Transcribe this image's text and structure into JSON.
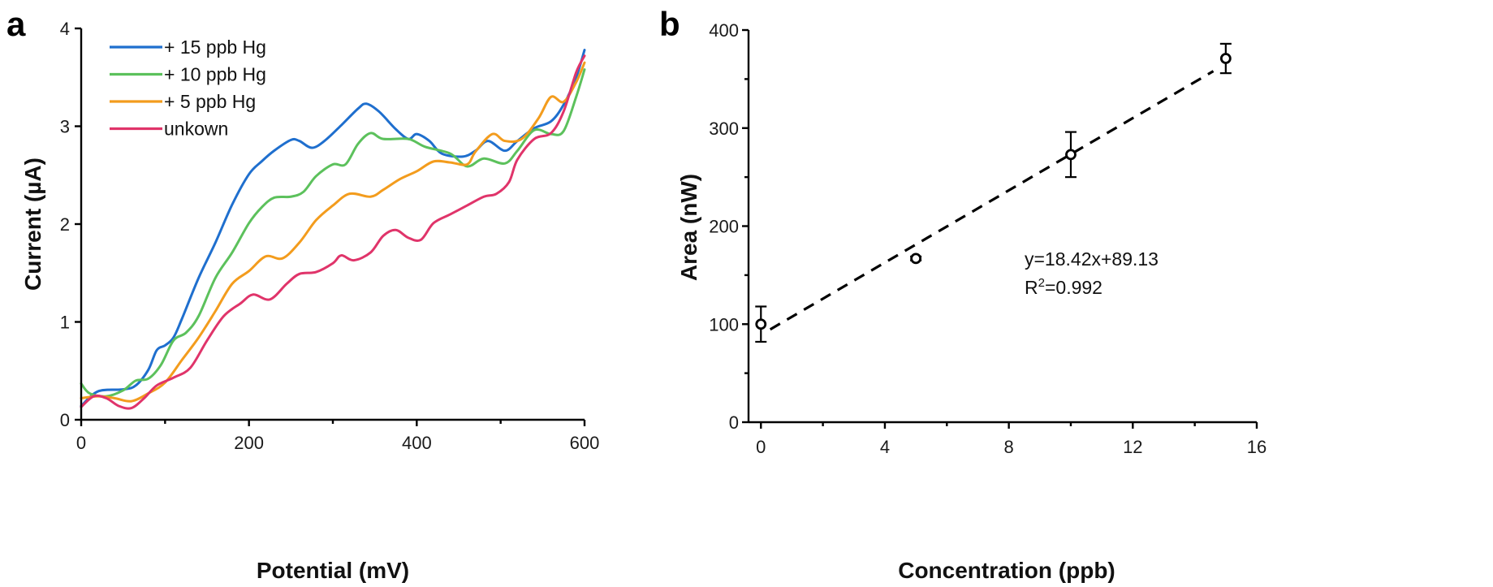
{
  "chart_data": [
    {
      "panel": "a",
      "type": "line",
      "title": "",
      "xlabel": "Potential (mV)",
      "ylabel": "Current (µA)",
      "xlim": [
        0,
        600
      ],
      "ylim": [
        0,
        4
      ],
      "xticks": [
        0,
        200,
        400,
        600
      ],
      "xticks_minor": [
        100,
        300,
        500
      ],
      "yticks": [
        0,
        1,
        2,
        3,
        4
      ],
      "grid": false,
      "legend_position": "top-left",
      "series": [
        {
          "name": "+ 15 ppb Hg",
          "color": "#1f6fce",
          "x": [
            0,
            20,
            50,
            65,
            80,
            90,
            100,
            110,
            120,
            140,
            160,
            180,
            200,
            215,
            230,
            250,
            260,
            275,
            290,
            310,
            330,
            340,
            355,
            375,
            390,
            400,
            415,
            430,
            455,
            470,
            485,
            505,
            520,
            540,
            560,
            575,
            590,
            600
          ],
          "y": [
            0.14,
            0.29,
            0.31,
            0.35,
            0.51,
            0.71,
            0.76,
            0.84,
            1.03,
            1.45,
            1.81,
            2.2,
            2.51,
            2.64,
            2.75,
            2.86,
            2.85,
            2.78,
            2.85,
            3.01,
            3.18,
            3.23,
            3.15,
            2.97,
            2.87,
            2.92,
            2.85,
            2.72,
            2.69,
            2.75,
            2.85,
            2.75,
            2.85,
            2.98,
            3.05,
            3.22,
            3.5,
            3.78
          ]
        },
        {
          "name": "+ 10 ppb Hg",
          "color": "#5cc15c",
          "x": [
            0,
            10,
            30,
            50,
            65,
            80,
            95,
            110,
            125,
            140,
            160,
            180,
            200,
            215,
            230,
            250,
            265,
            280,
            300,
            315,
            330,
            345,
            360,
            390,
            410,
            440,
            460,
            480,
            505,
            520,
            540,
            560,
            575,
            590,
            600
          ],
          "y": [
            0.37,
            0.27,
            0.24,
            0.3,
            0.4,
            0.42,
            0.56,
            0.81,
            0.89,
            1.06,
            1.45,
            1.71,
            2.01,
            2.17,
            2.27,
            2.28,
            2.33,
            2.49,
            2.61,
            2.61,
            2.82,
            2.93,
            2.87,
            2.87,
            2.79,
            2.72,
            2.59,
            2.67,
            2.62,
            2.75,
            2.96,
            2.92,
            2.95,
            3.3,
            3.58
          ]
        },
        {
          "name": "+ 5 ppb Hg",
          "color": "#f39c1d",
          "x": [
            0,
            20,
            40,
            60,
            80,
            100,
            120,
            140,
            160,
            180,
            200,
            220,
            240,
            260,
            280,
            300,
            320,
            345,
            360,
            380,
            400,
            420,
            440,
            460,
            470,
            490,
            505,
            525,
            545,
            560,
            575,
            590,
            600
          ],
          "y": [
            0.22,
            0.24,
            0.22,
            0.19,
            0.27,
            0.38,
            0.61,
            0.84,
            1.11,
            1.39,
            1.52,
            1.67,
            1.65,
            1.81,
            2.04,
            2.19,
            2.31,
            2.28,
            2.35,
            2.46,
            2.54,
            2.64,
            2.63,
            2.61,
            2.74,
            2.92,
            2.85,
            2.87,
            3.08,
            3.3,
            3.25,
            3.45,
            3.65
          ]
        },
        {
          "name": "unkown",
          "color": "#e0346a",
          "x": [
            0,
            15,
            30,
            45,
            60,
            75,
            90,
            110,
            130,
            150,
            170,
            190,
            205,
            225,
            245,
            260,
            280,
            300,
            310,
            325,
            345,
            360,
            375,
            390,
            405,
            420,
            440,
            460,
            480,
            495,
            510,
            520,
            540,
            560,
            575,
            590,
            600
          ],
          "y": [
            0.13,
            0.24,
            0.22,
            0.14,
            0.12,
            0.22,
            0.35,
            0.43,
            0.53,
            0.81,
            1.06,
            1.19,
            1.28,
            1.23,
            1.39,
            1.49,
            1.51,
            1.6,
            1.68,
            1.63,
            1.71,
            1.88,
            1.94,
            1.86,
            1.84,
            2.01,
            2.1,
            2.19,
            2.28,
            2.31,
            2.43,
            2.66,
            2.87,
            2.93,
            3.15,
            3.55,
            3.72
          ]
        }
      ]
    },
    {
      "panel": "b",
      "type": "scatter",
      "title": "",
      "xlabel": "Concentration (ppb)",
      "ylabel": "Area (nW)",
      "xlim": [
        -0.4,
        16
      ],
      "ylim": [
        0,
        400
      ],
      "xticks": [
        0,
        4,
        8,
        12,
        16
      ],
      "xticks_minor": [
        2,
        6,
        10,
        14
      ],
      "yticks": [
        0,
        100,
        200,
        300,
        400
      ],
      "yticks_minor": [
        50,
        150,
        250,
        350
      ],
      "grid": false,
      "points": [
        {
          "x": 0,
          "y": 100,
          "err": 18
        },
        {
          "x": 5,
          "y": 167,
          "err": 2
        },
        {
          "x": 10,
          "y": 273,
          "err": 23
        },
        {
          "x": 15,
          "y": 371,
          "err": 15
        }
      ],
      "fit": {
        "slope": 18.42,
        "intercept": 89.13,
        "x_range": [
          0.3,
          14.6
        ],
        "style": "dashed",
        "equation_label": "y=18.42x+89.13",
        "r2_prefix": "R",
        "r2_sup": "2",
        "r2_value": "=0.992"
      }
    }
  ],
  "panels": {
    "a": {
      "label": "a"
    },
    "b": {
      "label": "b"
    }
  }
}
